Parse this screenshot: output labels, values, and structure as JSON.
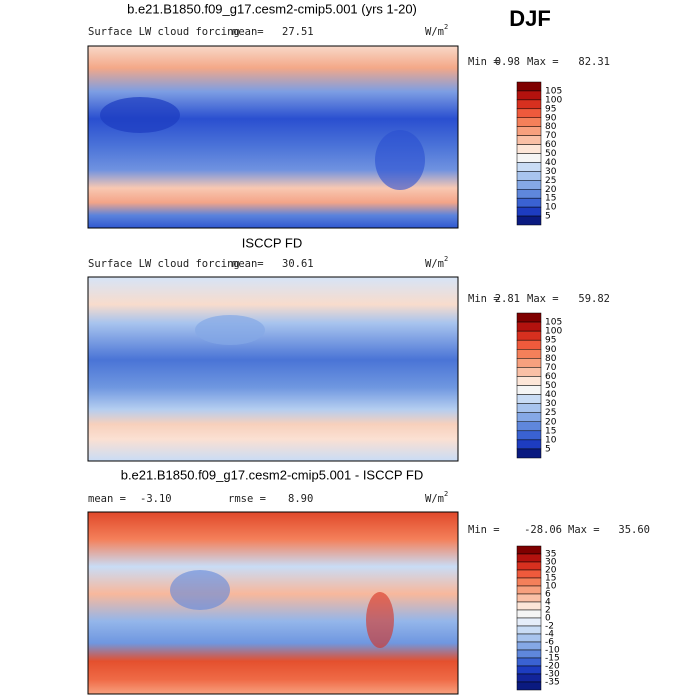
{
  "header": {
    "title": "DJF"
  },
  "panels": [
    {
      "title": "b.e21.B1850.f09_g17.cesm2-cmip5.001 (yrs 1-20)",
      "field": "Surface LW cloud forcing",
      "mean_label": "mean=",
      "mean": 27.51,
      "units": "W/m",
      "units_exp": "2",
      "min_label": "Min =",
      "min": 0.98,
      "max_label": "Max =",
      "max": 82.31,
      "colorbar": {
        "levels": [
          105,
          100,
          95,
          90,
          80,
          70,
          60,
          50,
          40,
          30,
          25,
          20,
          15,
          10,
          5
        ],
        "colors": [
          "#7f0000",
          "#b3120e",
          "#d7301f",
          "#ef5a3c",
          "#f4805a",
          "#f7a07e",
          "#fac0a6",
          "#fde6d8",
          "#f5f5f5",
          "#c9dcf5",
          "#a8c4ee",
          "#85a8e6",
          "#5f87dc",
          "#3a62d2",
          "#1d3cc0",
          "#0a1a80"
        ]
      }
    },
    {
      "title": "ISCCP FD",
      "field": "Surface LW cloud forcing",
      "mean_label": "mean=",
      "mean": 30.61,
      "units": "W/m",
      "units_exp": "2",
      "min_label": "Min =",
      "min": 2.81,
      "max_label": "Max =",
      "max": 59.82,
      "colorbar": {
        "levels": [
          105,
          100,
          95,
          90,
          80,
          70,
          60,
          50,
          40,
          30,
          25,
          20,
          15,
          10,
          5
        ],
        "colors": [
          "#7f0000",
          "#b3120e",
          "#d7301f",
          "#ef5a3c",
          "#f4805a",
          "#f7a07e",
          "#fac0a6",
          "#fde6d8",
          "#f5f5f5",
          "#c9dcf5",
          "#a8c4ee",
          "#85a8e6",
          "#5f87dc",
          "#3a62d2",
          "#1d3cc0",
          "#0a1a80"
        ]
      }
    },
    {
      "title": "b.e21.B1850.f09_g17.cesm2-cmip5.001 - ISCCP FD",
      "mean_label": "mean =",
      "mean": "-3.10",
      "rmse_label": "rmse =",
      "rmse": "8.90",
      "units": "W/m",
      "units_exp": "2",
      "min_label": "Min =",
      "min": -28.06,
      "max_label": "Max =",
      "max": "35.60",
      "colorbar": {
        "levels": [
          35,
          30,
          20,
          15,
          10,
          6,
          4,
          2,
          0,
          -2,
          -4,
          -6,
          -10,
          -15,
          -20,
          -30,
          -35
        ],
        "colors": [
          "#7f0000",
          "#b3120e",
          "#d7301f",
          "#ef5a3c",
          "#f4805a",
          "#f7a07e",
          "#fac0a6",
          "#fde6d8",
          "#f5f5f5",
          "#e6eefa",
          "#c9dcf5",
          "#a8c4ee",
          "#85a8e6",
          "#5f87dc",
          "#3a62d2",
          "#1d3cc0",
          "#12249a",
          "#0a1a80"
        ]
      }
    }
  ]
}
